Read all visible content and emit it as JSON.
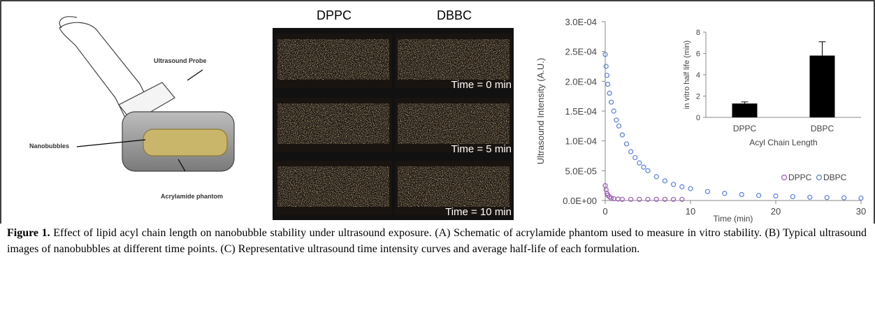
{
  "schematic": {
    "labels": {
      "probe": "Ultrasound Probe",
      "nanobubbles": "Nanobubbles",
      "phantom": "Acrylamide phantom"
    }
  },
  "images": {
    "columns": [
      "DPPC",
      "DBBC"
    ],
    "times": [
      "Time = 0 min",
      "Time = 5 min",
      "Time = 10 min"
    ]
  },
  "chart_data": [
    {
      "type": "scatter",
      "y_label": "Ultrasound Intensity (A.U.)",
      "x_label": "Time (min)",
      "xlim": [
        0,
        30
      ],
      "xticks": [
        0,
        10,
        20,
        30
      ],
      "ylim": [
        0,
        0.0003
      ],
      "yticks": [
        {
          "value": 0,
          "label": "0.0E+00"
        },
        {
          "value": 5e-05,
          "label": "5.0E-05"
        },
        {
          "value": 0.0001,
          "label": "1.0E-04"
        },
        {
          "value": 0.00015,
          "label": "1.5E-04"
        },
        {
          "value": 0.0002,
          "label": "2.0E-04"
        },
        {
          "value": 0.00025,
          "label": "2.5E-04"
        },
        {
          "value": 0.0003,
          "label": "3.0E-04"
        }
      ],
      "legend": "lower right",
      "series": [
        {
          "name": "DPPC",
          "color": "#9b59b6",
          "x": [
            0,
            0.1,
            0.2,
            0.3,
            0.5,
            0.7,
            1,
            1.5,
            2,
            3,
            4,
            5,
            6,
            7,
            8,
            9
          ],
          "values": [
            2.5e-05,
            1.8e-05,
            1.2e-05,
            9e-06,
            6e-06,
            4e-06,
            3e-06,
            2.5e-06,
            2e-06,
            2e-06,
            2e-06,
            2e-06,
            2e-06,
            2e-06,
            2e-06,
            2e-06
          ]
        },
        {
          "name": "DBPC",
          "color": "#5b7fe0",
          "x": [
            0,
            0.1,
            0.2,
            0.3,
            0.5,
            0.7,
            1,
            1.3,
            1.6,
            2,
            2.5,
            3,
            3.5,
            4,
            4.5,
            5,
            6,
            7,
            8,
            9,
            10,
            12,
            14,
            16,
            18,
            20,
            22,
            24,
            26,
            28,
            30
          ],
          "values": [
            0.000245,
            0.000225,
            0.00021,
            0.000195,
            0.00018,
            0.000165,
            0.00015,
            0.000135,
            0.000125,
            0.00011,
            9.5e-05,
            8.2e-05,
            7.2e-05,
            6.3e-05,
            5.6e-05,
            5e-05,
            4e-05,
            3.3e-05,
            2.7e-05,
            2.3e-05,
            2e-05,
            1.5e-05,
            1.2e-05,
            1e-05,
            8.5e-06,
            7.5e-06,
            6.5e-06,
            5.5e-06,
            5e-06,
            4.5e-06,
            4e-06
          ]
        }
      ]
    },
    {
      "type": "bar",
      "y_label": "in vitro half life (min)",
      "x_label": "Acyl Chain Length",
      "categories": [
        "DPPC",
        "DBPC"
      ],
      "values": [
        1.3,
        5.8
      ],
      "errors": [
        0.15,
        1.3
      ],
      "color": "#000000",
      "ylim": [
        0,
        8
      ],
      "yticks": [
        0,
        2,
        4,
        6,
        8
      ]
    }
  ],
  "caption": {
    "label": "Figure 1.",
    "text": "Effect of lipid acyl chain length on nanobubble stability under ultrasound exposure. (A) Schematic of acrylamide phantom used to measure in vitro stability. (B) Typical ultrasound images of nanobubbles at different time points. (C) Representative ultrasound time intensity curves and average half-life of each formulation."
  }
}
